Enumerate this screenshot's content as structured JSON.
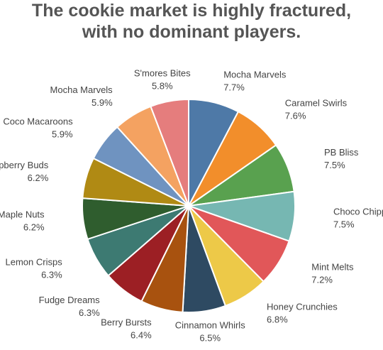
{
  "chart_data": {
    "type": "pie",
    "title": "The cookie market is highly fractured, with no dominant players.",
    "categories": [
      "Mocha Marvels",
      "Caramel Swirls",
      "PB Bliss",
      "Choco Chippers",
      "Mint Melts",
      "Honey Crunchies",
      "Cinnamon Whirls",
      "Berry Bursts",
      "Fudge Dreams",
      "Lemon Crisps",
      "Maple Nuts",
      "Raspberry Buds",
      "Coco Macaroons",
      "Mocha Marvels",
      "S'mores Bites"
    ],
    "values": [
      7.7,
      7.6,
      7.5,
      7.5,
      7.2,
      6.8,
      6.5,
      6.4,
      6.3,
      6.3,
      6.2,
      6.2,
      5.9,
      5.9,
      5.8
    ],
    "value_labels": [
      "7.7%",
      "7.6%",
      "7.5%",
      "7.5%",
      "7.2%",
      "6.8%",
      "6.5%",
      "6.4%",
      "6.3%",
      "6.3%",
      "6.2%",
      "6.2%",
      "5.9%",
      "5.9%",
      "5.8%"
    ],
    "colors": [
      "#4e79a7",
      "#f28e2b",
      "#59a14f",
      "#76b7b2",
      "#e15759",
      "#edc948",
      "#2e4a62",
      "#a8520f",
      "#9c1f24",
      "#3d7a72",
      "#2f5d2e",
      "#b08a14",
      "#6f93c0",
      "#f4a261",
      "#e57d7d"
    ]
  }
}
